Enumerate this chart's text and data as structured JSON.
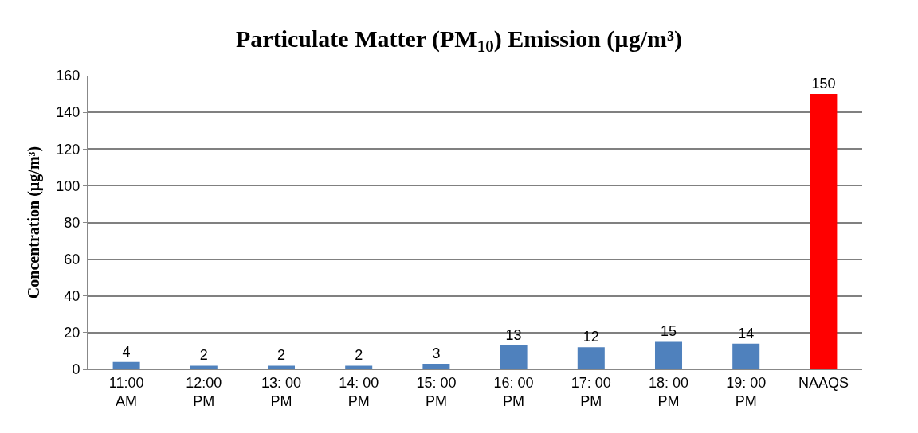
{
  "chart_data": {
    "type": "bar",
    "title": "Particulate Matter (PM$_{10}$) Emission (µg/m³)",
    "ylabel": "Concentration (µg/m³)",
    "categories": [
      "11:00\nAM",
      "12:00\nPM",
      "13: 00\nPM",
      "14: 00\nPM",
      "15: 00\nPM",
      "16: 00\nPM",
      "17: 00\nPM",
      "18: 00\nPM",
      "19: 00\nPM",
      "NAAQS"
    ],
    "values": [
      4,
      2,
      2,
      2,
      3,
      13,
      12,
      15,
      14,
      150
    ],
    "colors": [
      "#4f81bd",
      "#4f81bd",
      "#4f81bd",
      "#4f81bd",
      "#4f81bd",
      "#4f81bd",
      "#4f81bd",
      "#4f81bd",
      "#4f81bd",
      "#ff0000"
    ],
    "ylim": [
      0,
      160
    ],
    "yticks": [
      0,
      20,
      40,
      60,
      80,
      100,
      120,
      140,
      160
    ],
    "grid": "y",
    "data_labels": true
  }
}
